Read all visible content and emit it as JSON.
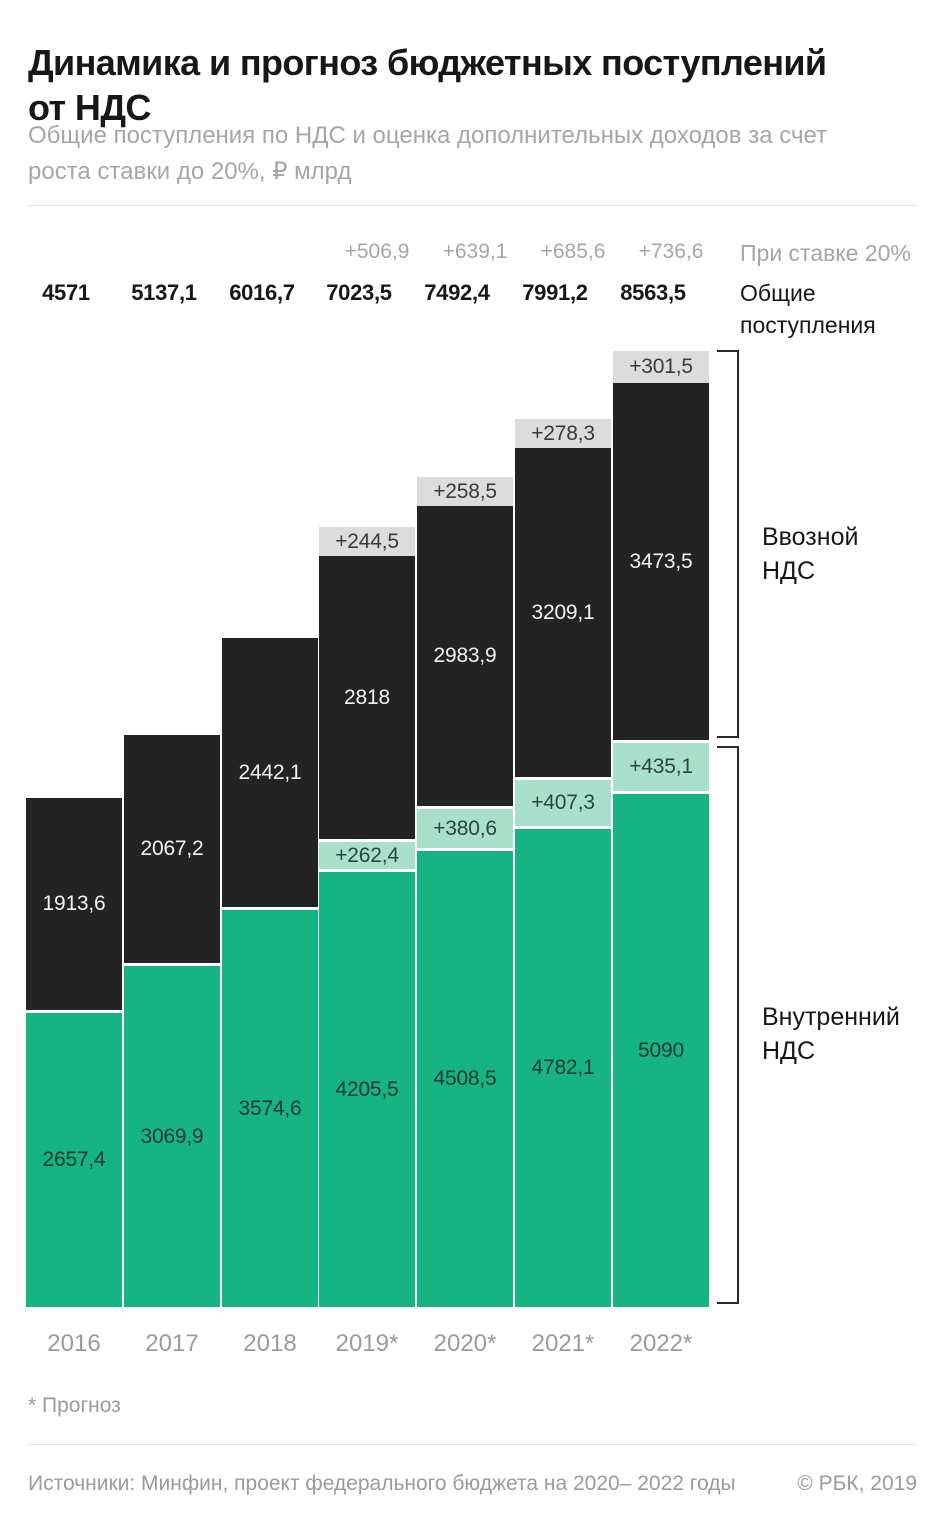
{
  "header": {
    "title_lines": [
      "Динамика и прогноз бюджетных поступлений",
      "от НДС"
    ],
    "subtitle_lines": [
      "Общие поступления по НДС и оценка дополнительных доходов за счет",
      "роста ставки до 20%, ₽ млрд"
    ]
  },
  "totals": {
    "rate20_label": "При ставке 20%",
    "total_label": "Общие поступления",
    "additions": [
      "+506,9",
      "+639,1",
      "+685,6",
      "+736,6"
    ],
    "values": [
      "4571",
      "5137,1",
      "6016,7",
      "7023,5",
      "7492,4",
      "7991,2",
      "8563,5"
    ]
  },
  "legend": {
    "import_label": "Ввозной НДС",
    "domestic_label": "Внутренний НДС"
  },
  "bars": [
    {
      "year": "2016",
      "import": "1913,6",
      "domestic": "2657,4"
    },
    {
      "year": "2017",
      "import": "2067,2",
      "domestic": "3069,9"
    },
    {
      "year": "2018",
      "import": "2442,1",
      "domestic": "3574,6"
    },
    {
      "year": "2019*",
      "import_add": "+244,5",
      "import": "2818",
      "domestic_add": "+262,4",
      "domestic": "4205,5"
    },
    {
      "year": "2020*",
      "import_add": "+258,5",
      "import": "2983,9",
      "domestic_add": "+380,6",
      "domestic": "4508,5"
    },
    {
      "year": "2021*",
      "import_add": "+278,3",
      "import": "3209,1",
      "domestic_add": "+407,3",
      "domestic": "4782,1"
    },
    {
      "year": "2022*",
      "import_add": "+301,5",
      "import": "3473,5",
      "domestic_add": "+435,1",
      "domestic": "5090"
    }
  ],
  "colors": {
    "import": "#232323",
    "import_add": "#dcdcdc",
    "domestic": "#17b483",
    "domestic_add": "#a8e0cb"
  },
  "footnote": "* Прогноз",
  "source": "Источники: Минфин, проект федерального бюджета на 2020– 2022 годы",
  "copyright": "© РБК, 2019",
  "chart_data": {
    "type": "bar",
    "stacked": true,
    "unit": "₽ млрд",
    "title": "Динамика и прогноз бюджетных поступлений от НДС",
    "subtitle": "Общие поступления по НДС и оценка дополнительных доходов за счет роста ставки до 20%, ₽ млрд",
    "categories": [
      "2016",
      "2017",
      "2018",
      "2019*",
      "2020*",
      "2021*",
      "2022*"
    ],
    "series": [
      {
        "name": "Внутренний НДС",
        "color": "#17b483",
        "values": [
          2657.4,
          3069.9,
          3574.6,
          4205.5,
          4508.5,
          4782.1,
          5090
        ]
      },
      {
        "name": "Внутренний НДС, дополнительно при ставке 20%",
        "color": "#a8e0cb",
        "values": [
          null,
          null,
          null,
          262.4,
          380.6,
          407.3,
          435.1
        ]
      },
      {
        "name": "Ввозной НДС",
        "color": "#232323",
        "values": [
          1913.6,
          2067.2,
          2442.1,
          2818,
          2983.9,
          3209.1,
          3473.5
        ]
      },
      {
        "name": "Ввозной НДС, дополнительно при ставке 20%",
        "color": "#dcdcdc",
        "values": [
          null,
          null,
          null,
          244.5,
          258.5,
          278.3,
          301.5
        ]
      }
    ],
    "totals_row": [
      4571,
      5137.1,
      6016.7,
      7023.5,
      7492.4,
      7991.2,
      8563.5
    ],
    "additions_row": [
      null,
      null,
      null,
      506.9,
      639.1,
      685.6,
      736.6
    ],
    "grid": false,
    "legend_position": "right-brackets",
    "footnote": "* Прогноз"
  }
}
